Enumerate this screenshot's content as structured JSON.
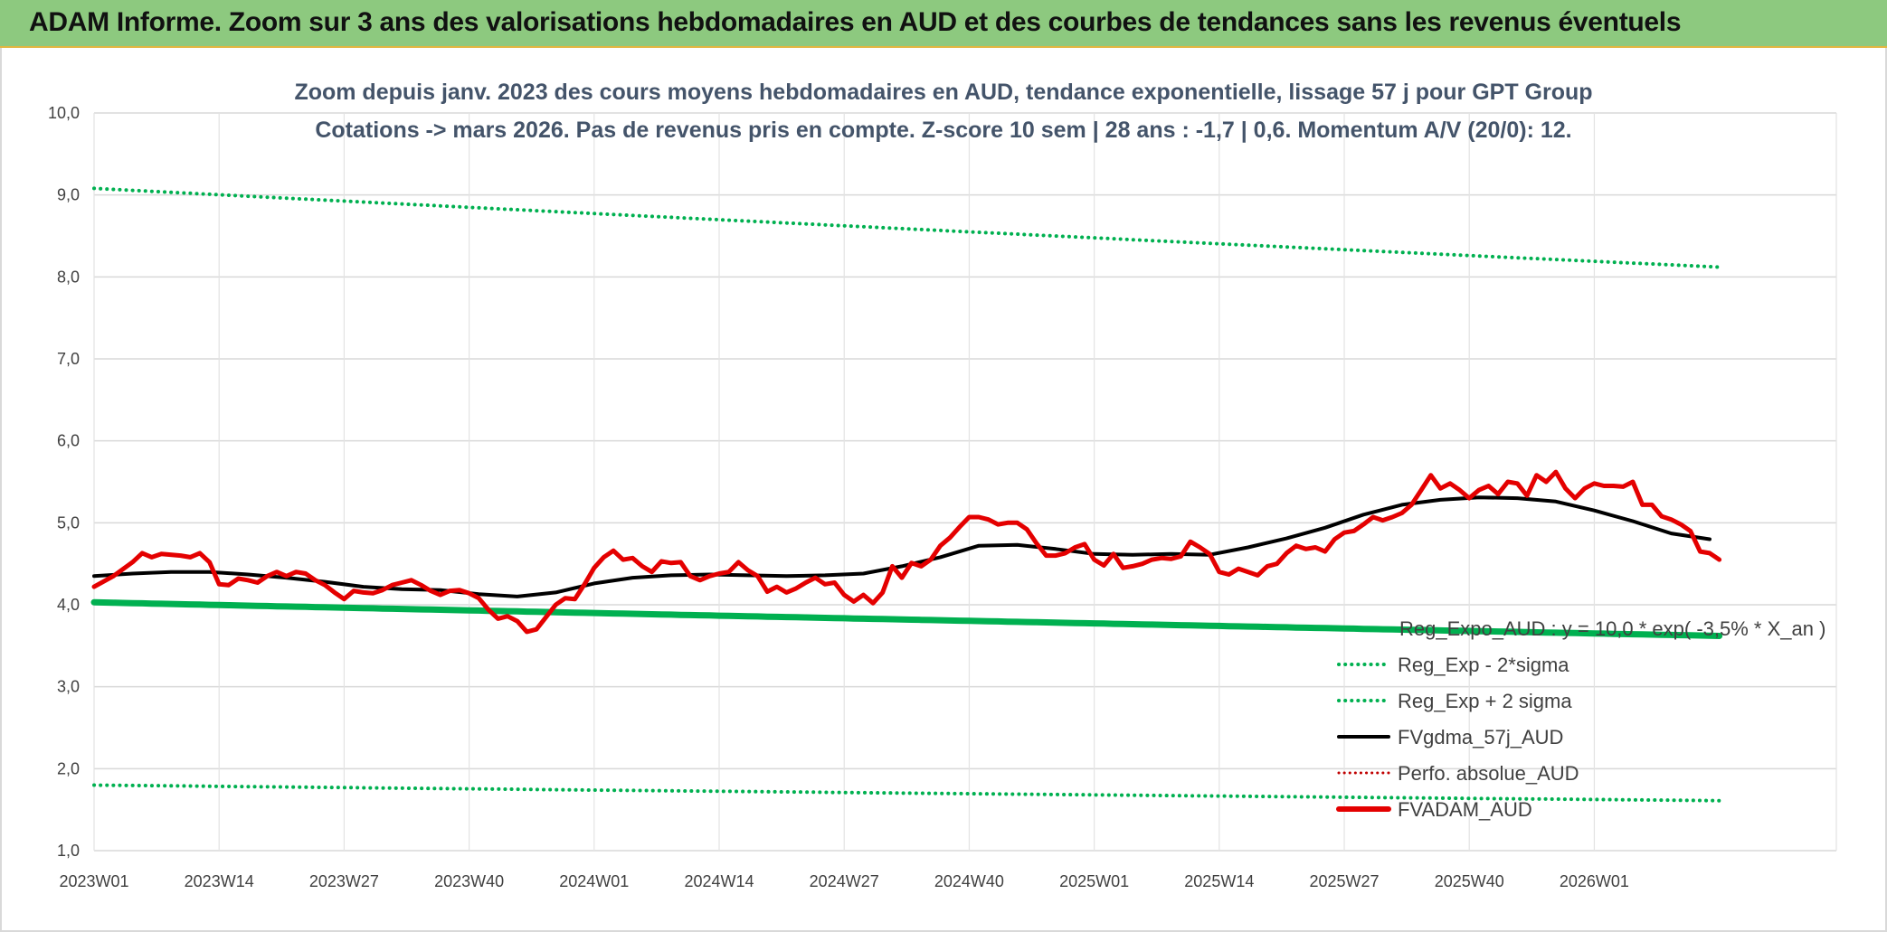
{
  "header": {
    "title": "ADAM Informe. Zoom sur 3 ans des valorisations hebdomadaires en AUD et des courbes de tendances sans les revenus éventuels"
  },
  "chart_data": {
    "type": "line",
    "title": "Zoom depuis janv. 2023 des cours moyens hebdomadaires en AUD, tendance exponentielle, lissage 57 j pour GPT Group",
    "subtitle": "Cotations -> mars 2026. Pas de revenus pris en compte. Z-score 10 sem | 28 ans : -1,7 | 0,6. Momentum A/V (20/0): 12.",
    "xlabel": "",
    "ylabel": "",
    "x_tick_labels": [
      "2023W01",
      "2023W14",
      "2023W27",
      "2023W40",
      "2024W01",
      "2024W14",
      "2024W27",
      "2024W40",
      "2025W01",
      "2025W14",
      "2025W27",
      "2025W40",
      "2026W01"
    ],
    "x_range_weeks": [
      0,
      168
    ],
    "ylim": [
      1.0,
      10.0
    ],
    "y_tick_labels": [
      "1,0",
      "2,0",
      "3,0",
      "4,0",
      "5,0",
      "6,0",
      "7,0",
      "8,0",
      "9,0",
      "10,0"
    ],
    "grid": true,
    "legend_position": "bottom-right",
    "series": [
      {
        "name": "Reg_Expo_AUD : y = 10,0 * exp( -3,5% * X_an )",
        "color": "#00b050",
        "style": "solid",
        "start": 4.03,
        "end": 3.62
      },
      {
        "name": "Reg_Exp - 2*sigma",
        "color": "#00b050",
        "style": "dotted",
        "start": 1.8,
        "end": 1.61
      },
      {
        "name": "Reg_Exp + 2 sigma",
        "color": "#00b050",
        "style": "dotted",
        "start": 9.08,
        "end": 8.12
      },
      {
        "name": "FVgdma_57j_AUD",
        "color": "#000000",
        "style": "solid",
        "points": [
          [
            0,
            4.35
          ],
          [
            4,
            4.38
          ],
          [
            8,
            4.4
          ],
          [
            12,
            4.4
          ],
          [
            16,
            4.37
          ],
          [
            20,
            4.33
          ],
          [
            24,
            4.28
          ],
          [
            28,
            4.22
          ],
          [
            32,
            4.19
          ],
          [
            36,
            4.18
          ],
          [
            40,
            4.13
          ],
          [
            44,
            4.1
          ],
          [
            48,
            4.15
          ],
          [
            52,
            4.26
          ],
          [
            56,
            4.33
          ],
          [
            60,
            4.36
          ],
          [
            64,
            4.37
          ],
          [
            68,
            4.36
          ],
          [
            72,
            4.35
          ],
          [
            76,
            4.36
          ],
          [
            80,
            4.38
          ],
          [
            84,
            4.47
          ],
          [
            88,
            4.58
          ],
          [
            92,
            4.72
          ],
          [
            96,
            4.73
          ],
          [
            100,
            4.68
          ],
          [
            104,
            4.62
          ],
          [
            108,
            4.61
          ],
          [
            112,
            4.62
          ],
          [
            116,
            4.61
          ],
          [
            120,
            4.7
          ],
          [
            124,
            4.81
          ],
          [
            128,
            4.94
          ],
          [
            132,
            5.1
          ],
          [
            136,
            5.22
          ],
          [
            140,
            5.28
          ],
          [
            144,
            5.31
          ],
          [
            148,
            5.3
          ],
          [
            152,
            5.26
          ],
          [
            156,
            5.15
          ],
          [
            160,
            5.02
          ],
          [
            164,
            4.87
          ],
          [
            168,
            4.8
          ]
        ]
      },
      {
        "name": "Perfo. absolue_AUD",
        "color": "#c00000",
        "style": "dotted"
      },
      {
        "name": "FVADAM_AUD",
        "color": "#e40000",
        "style": "solid",
        "points": [
          [
            0,
            4.22
          ],
          [
            2,
            4.35
          ],
          [
            4,
            4.52
          ],
          [
            5,
            4.63
          ],
          [
            6,
            4.58
          ],
          [
            7,
            4.62
          ],
          [
            9,
            4.6
          ],
          [
            10,
            4.58
          ],
          [
            11,
            4.63
          ],
          [
            12,
            4.52
          ],
          [
            13,
            4.25
          ],
          [
            14,
            4.24
          ],
          [
            15,
            4.32
          ],
          [
            16,
            4.3
          ],
          [
            17,
            4.27
          ],
          [
            18,
            4.35
          ],
          [
            19,
            4.4
          ],
          [
            20,
            4.35
          ],
          [
            21,
            4.4
          ],
          [
            22,
            4.38
          ],
          [
            23,
            4.3
          ],
          [
            24,
            4.24
          ],
          [
            25,
            4.15
          ],
          [
            26,
            4.07
          ],
          [
            27,
            4.17
          ],
          [
            28,
            4.15
          ],
          [
            29,
            4.14
          ],
          [
            30,
            4.18
          ],
          [
            31,
            4.24
          ],
          [
            32,
            4.27
          ],
          [
            33,
            4.3
          ],
          [
            34,
            4.24
          ],
          [
            35,
            4.17
          ],
          [
            36,
            4.12
          ],
          [
            37,
            4.17
          ],
          [
            38,
            4.18
          ],
          [
            39,
            4.14
          ],
          [
            40,
            4.08
          ],
          [
            41,
            3.94
          ],
          [
            42,
            3.83
          ],
          [
            43,
            3.86
          ],
          [
            44,
            3.8
          ],
          [
            45,
            3.67
          ],
          [
            46,
            3.7
          ],
          [
            47,
            3.85
          ],
          [
            48,
            4.0
          ],
          [
            49,
            4.08
          ],
          [
            50,
            4.07
          ],
          [
            51,
            4.25
          ],
          [
            52,
            4.45
          ],
          [
            53,
            4.58
          ],
          [
            54,
            4.66
          ],
          [
            55,
            4.55
          ],
          [
            56,
            4.57
          ],
          [
            57,
            4.47
          ],
          [
            58,
            4.4
          ],
          [
            59,
            4.53
          ],
          [
            60,
            4.51
          ],
          [
            61,
            4.52
          ],
          [
            62,
            4.35
          ],
          [
            63,
            4.3
          ],
          [
            64,
            4.35
          ],
          [
            65,
            4.38
          ],
          [
            66,
            4.4
          ],
          [
            67,
            4.52
          ],
          [
            68,
            4.42
          ],
          [
            69,
            4.35
          ],
          [
            70,
            4.16
          ],
          [
            71,
            4.22
          ],
          [
            72,
            4.15
          ],
          [
            73,
            4.2
          ],
          [
            74,
            4.27
          ],
          [
            75,
            4.33
          ],
          [
            76,
            4.25
          ],
          [
            77,
            4.27
          ],
          [
            78,
            4.12
          ],
          [
            79,
            4.04
          ],
          [
            80,
            4.12
          ],
          [
            81,
            4.02
          ],
          [
            82,
            4.15
          ],
          [
            83,
            4.47
          ],
          [
            84,
            4.33
          ],
          [
            85,
            4.51
          ],
          [
            86,
            4.47
          ],
          [
            87,
            4.55
          ],
          [
            88,
            4.72
          ],
          [
            89,
            4.82
          ],
          [
            90,
            4.95
          ],
          [
            91,
            5.07
          ],
          [
            92,
            5.07
          ],
          [
            93,
            5.04
          ],
          [
            94,
            4.98
          ],
          [
            95,
            5.0
          ],
          [
            96,
            5.0
          ],
          [
            97,
            4.92
          ],
          [
            98,
            4.75
          ],
          [
            99,
            4.6
          ],
          [
            100,
            4.6
          ],
          [
            101,
            4.63
          ],
          [
            102,
            4.7
          ],
          [
            103,
            4.74
          ],
          [
            104,
            4.55
          ],
          [
            105,
            4.48
          ],
          [
            106,
            4.62
          ],
          [
            107,
            4.45
          ],
          [
            108,
            4.47
          ],
          [
            109,
            4.5
          ],
          [
            110,
            4.55
          ],
          [
            111,
            4.57
          ],
          [
            112,
            4.56
          ],
          [
            113,
            4.59
          ],
          [
            114,
            4.77
          ],
          [
            115,
            4.7
          ],
          [
            116,
            4.62
          ],
          [
            117,
            4.4
          ],
          [
            118,
            4.37
          ],
          [
            119,
            4.44
          ],
          [
            120,
            4.4
          ],
          [
            121,
            4.36
          ],
          [
            122,
            4.47
          ],
          [
            123,
            4.5
          ],
          [
            124,
            4.63
          ],
          [
            125,
            4.72
          ],
          [
            126,
            4.68
          ],
          [
            127,
            4.7
          ],
          [
            128,
            4.65
          ],
          [
            129,
            4.8
          ],
          [
            130,
            4.88
          ],
          [
            131,
            4.9
          ],
          [
            132,
            4.98
          ],
          [
            133,
            5.07
          ],
          [
            134,
            5.03
          ],
          [
            135,
            5.07
          ],
          [
            136,
            5.12
          ],
          [
            137,
            5.22
          ],
          [
            138,
            5.4
          ],
          [
            139,
            5.58
          ],
          [
            140,
            5.42
          ],
          [
            141,
            5.48
          ],
          [
            142,
            5.4
          ],
          [
            143,
            5.3
          ],
          [
            144,
            5.4
          ],
          [
            145,
            5.45
          ],
          [
            146,
            5.35
          ],
          [
            147,
            5.5
          ],
          [
            148,
            5.48
          ],
          [
            149,
            5.33
          ],
          [
            150,
            5.58
          ],
          [
            151,
            5.5
          ],
          [
            152,
            5.62
          ],
          [
            153,
            5.42
          ],
          [
            154,
            5.3
          ],
          [
            155,
            5.42
          ],
          [
            156,
            5.48
          ],
          [
            157,
            5.45
          ],
          [
            158,
            5.45
          ],
          [
            159,
            5.44
          ],
          [
            160,
            5.5
          ],
          [
            161,
            5.22
          ],
          [
            162,
            5.22
          ],
          [
            163,
            5.08
          ],
          [
            164,
            5.04
          ],
          [
            165,
            4.98
          ],
          [
            166,
            4.9
          ],
          [
            167,
            4.65
          ],
          [
            168,
            4.63
          ],
          [
            169,
            4.55
          ]
        ]
      }
    ]
  }
}
